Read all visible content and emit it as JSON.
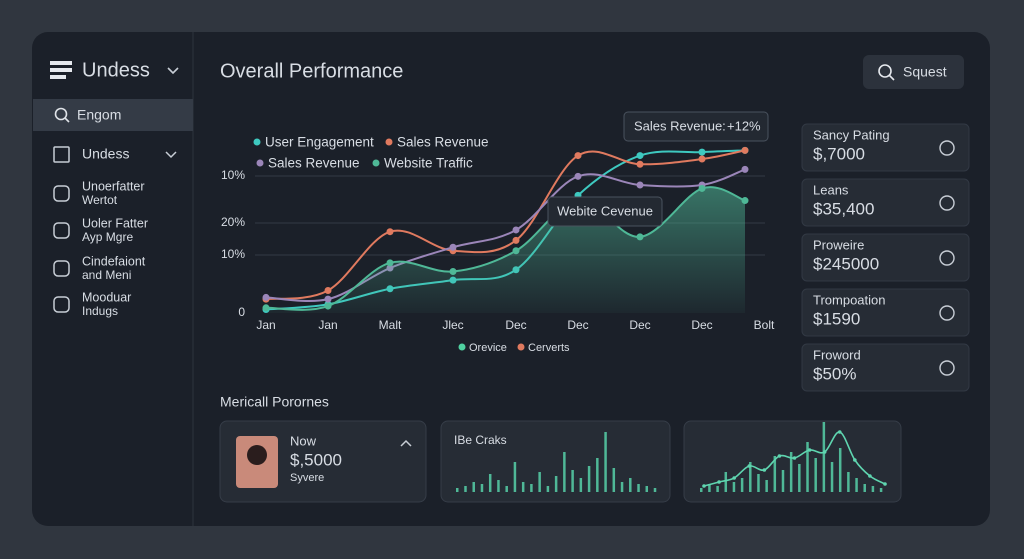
{
  "sidebar": {
    "brand": "Undess",
    "search": "Engom",
    "items": [
      {
        "label": "Undess"
      },
      {
        "label": "Unoerfatter",
        "sublabel": "Wertot"
      },
      {
        "label": "Uoler Fatter",
        "sublabel": "Ayp Mgre"
      },
      {
        "label": "Cindefaiont",
        "sublabel": "and Meni"
      },
      {
        "label": "Mooduar",
        "sublabel": "Indugs"
      }
    ]
  },
  "header": {
    "title": "Overall Performance",
    "button": "Squest"
  },
  "chart": {
    "type": "line",
    "categories": [
      "Jan",
      "Jan",
      "Malt",
      "Jlec",
      "Dec",
      "Dec",
      "Dec",
      "Dec",
      "Bolt"
    ],
    "y_labels": [
      "10%",
      "20%",
      "10%",
      "0"
    ],
    "ylim": [
      0,
      100
    ],
    "series": [
      {
        "name": "User Engagement",
        "color": "#3ec9c0",
        "values": [
          2,
          5,
          14,
          19,
          25,
          68,
          91,
          93,
          94
        ]
      },
      {
        "name": "Sales Revenue",
        "color": "#e07a5f",
        "values": [
          8,
          13,
          47,
          36,
          42,
          91,
          86,
          89,
          94
        ]
      },
      {
        "name": "Sales Revenue",
        "color": "#9b86b9",
        "values": [
          9,
          8,
          26,
          38,
          48,
          79,
          74,
          74,
          83
        ]
      },
      {
        "name": "Website Traffic",
        "color": "#4fb897",
        "values": [
          3,
          4,
          29,
          24,
          36,
          65,
          44,
          72,
          65
        ]
      }
    ],
    "legend_bottom": [
      {
        "name": "Orevice",
        "color": "#4fd1a0"
      },
      {
        "name": "Cerverts",
        "color": "#e07a5f"
      }
    ],
    "tooltip": {
      "label": "Sales Revenue:",
      "value": "+12%"
    },
    "tooltip2": "Webite Cevenue"
  },
  "stats": [
    {
      "label": "Sancy Pating",
      "value": "$,7000"
    },
    {
      "label": "Leans",
      "value": "$35,400"
    },
    {
      "label": "Proweire",
      "value": "$245000"
    },
    {
      "label": "Trompoation",
      "value": "$1590",
      "color": "#e07a5f"
    },
    {
      "label": "Froword",
      "value": "$50%"
    }
  ],
  "section": {
    "title": "Mericall Porornes",
    "cards": [
      {
        "title": "Now",
        "value": "$,5000",
        "subtitle": "Syvere"
      },
      {
        "title": "IBe Craks",
        "bars": [
          4,
          6,
          10,
          8,
          18,
          12,
          6,
          30,
          10,
          8,
          20,
          6,
          16,
          40,
          22,
          14,
          26,
          34,
          60,
          24,
          10,
          14,
          8,
          6,
          4
        ]
      },
      {
        "bars": [
          4,
          8,
          6,
          20,
          10,
          14,
          30,
          18,
          12,
          36,
          22,
          40,
          28,
          50,
          34,
          70,
          30,
          44,
          20,
          14,
          8,
          6,
          4
        ],
        "trend": [
          6,
          10,
          14,
          26,
          22,
          36,
          34,
          42,
          40,
          60,
          32,
          16,
          8
        ]
      }
    ]
  }
}
